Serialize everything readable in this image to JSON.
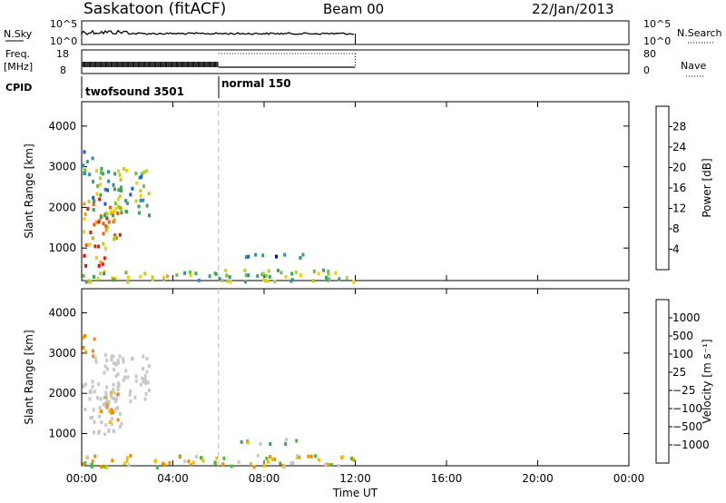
{
  "header": {
    "station": "Saskatoon (fitACF)",
    "beam": "Beam 00",
    "date": "22/Jan/2013"
  },
  "panels": {
    "nsky": {
      "label": "N.Sky",
      "tick_top": "10^5",
      "tick_bottom": "10^0",
      "right_top": "10^5",
      "right_bottom": "10^0",
      "right_label": "N.Search"
    },
    "freq": {
      "label_line1": "Freq.",
      "label_line2": "[MHz]",
      "tick_top": "18",
      "tick_bottom": "8",
      "right_top": "80",
      "right_bottom": "0",
      "right_label": "Nave"
    },
    "cpid": {
      "label": "CPID",
      "programs": [
        "twofsound 3501",
        "normal 150"
      ]
    }
  },
  "colors": {
    "power_scale": [
      "#0000ff",
      "#1e5bd8",
      "#2f8fa8",
      "#3fa060",
      "#6cc23a",
      "#b8d020",
      "#f0d000",
      "#f0a000",
      "#f06000",
      "#e82000",
      "#ff0000"
    ],
    "velocity_scale": [
      "#1a3fc8",
      "#2a6ad8",
      "#3f9f6f",
      "#3fbf3f",
      "#c8c8c8",
      "#f0c000",
      "#f09000",
      "#f05000",
      "#ff0000"
    ],
    "grey_scatter": "#bbbbbb"
  },
  "chart_data": [
    {
      "type": "heatmap",
      "panel": "power",
      "xlabel": "",
      "ylabel": "Slant Range [km]",
      "ylim": [
        200,
        4600
      ],
      "yticks": [
        1000,
        2000,
        3000,
        4000
      ],
      "colorbar": {
        "label": "Power [dB]",
        "ticks": [
          4,
          8,
          12,
          16,
          20,
          24,
          28
        ],
        "range": [
          0,
          32
        ]
      },
      "xlim_hours": [
        0,
        24
      ],
      "regions": [
        {
          "t0": 0.0,
          "t1": 0.6,
          "r0": 2800,
          "r1": 3500,
          "v": 10
        },
        {
          "t0": 0.0,
          "t1": 1.7,
          "r0": 1000,
          "r1": 2300,
          "v": 21
        },
        {
          "t0": 0.0,
          "t1": 1.2,
          "r0": 600,
          "r1": 900,
          "v": 26
        },
        {
          "t0": 0.4,
          "t1": 3.0,
          "r0": 1800,
          "r1": 3000,
          "v": 12
        },
        {
          "t0": 6.8,
          "t1": 10.2,
          "r0": 780,
          "r1": 900,
          "v": 5
        },
        {
          "t0": 0.0,
          "t1": 12.0,
          "r0": 200,
          "r1": 500,
          "v": 14
        }
      ]
    },
    {
      "type": "heatmap",
      "panel": "velocity",
      "xlabel": "Time UT",
      "ylabel": "Slant Range [km]",
      "ylim": [
        200,
        4600
      ],
      "yticks": [
        1000,
        2000,
        3000,
        4000
      ],
      "colorbar": {
        "label": "Velocity [m s^-1]",
        "ticks": [
          1000,
          500,
          100,
          25,
          -25,
          -100,
          -500,
          -1000
        ]
      },
      "xlim_hours": [
        0,
        24
      ],
      "xticks": [
        "00:00",
        "04:00",
        "08:00",
        "12:00",
        "16:00",
        "20:00",
        "00:00"
      ],
      "regions": [
        {
          "t0": 0.0,
          "t1": 0.6,
          "r0": 2900,
          "r1": 3500,
          "v": -200
        },
        {
          "t0": 0.0,
          "t1": 1.7,
          "r0": 1000,
          "r1": 2300,
          "v": 0
        },
        {
          "t0": 0.6,
          "t1": 1.6,
          "r0": 1300,
          "r1": 2100,
          "v": -150
        },
        {
          "t0": 0.4,
          "t1": 3.0,
          "r0": 1800,
          "r1": 3000,
          "v": 0
        },
        {
          "t0": 6.8,
          "t1": 10.2,
          "r0": 780,
          "r1": 900,
          "v": 80
        },
        {
          "t0": 0.0,
          "t1": 12.0,
          "r0": 200,
          "r1": 500,
          "v": -60
        }
      ]
    }
  ]
}
